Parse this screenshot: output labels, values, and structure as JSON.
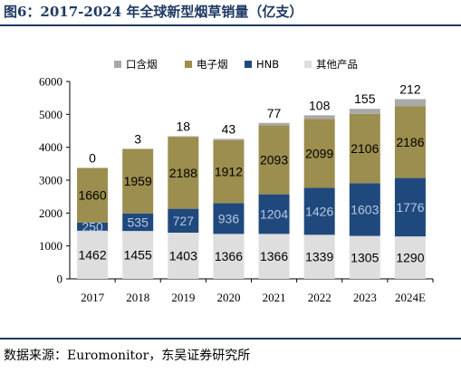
{
  "header": {
    "title": "图6：2017-2024 年全球新型烟草销量（亿支）"
  },
  "footer": {
    "source": "数据来源：Euromonitor，东吴证券研究所"
  },
  "colors": {
    "oral": "#a9a9a9",
    "ecig": "#9b8e4e",
    "hnb": "#1f497d",
    "other": "#dedede",
    "hnb_label": "#b8c6e0",
    "title": "#1f3a63"
  },
  "chart_data": {
    "type": "bar",
    "stacked": true,
    "categories": [
      "2017",
      "2018",
      "2019",
      "2020",
      "2021",
      "2022",
      "2023",
      "2024E"
    ],
    "series": [
      {
        "name": "其他产品",
        "key": "other",
        "values": [
          1462,
          1455,
          1403,
          1366,
          1366,
          1339,
          1305,
          1290
        ]
      },
      {
        "name": "HNB",
        "key": "hnb",
        "values": [
          250,
          535,
          727,
          936,
          1204,
          1426,
          1603,
          1776
        ]
      },
      {
        "name": "电子烟",
        "key": "ecig",
        "values": [
          1660,
          1959,
          2188,
          1912,
          2093,
          2099,
          2106,
          2186
        ]
      },
      {
        "name": "口含烟",
        "key": "oral",
        "values": [
          0,
          3,
          18,
          43,
          77,
          108,
          155,
          212
        ]
      }
    ],
    "legend_order": [
      "口含烟",
      "电子烟",
      "HNB",
      "其他产品"
    ],
    "legend_position": "top",
    "yticks": [
      0,
      1000,
      2000,
      3000,
      4000,
      5000,
      6000
    ],
    "ylim": [
      0,
      6000
    ],
    "grid": false,
    "title": "",
    "xlabel": "",
    "ylabel": ""
  }
}
